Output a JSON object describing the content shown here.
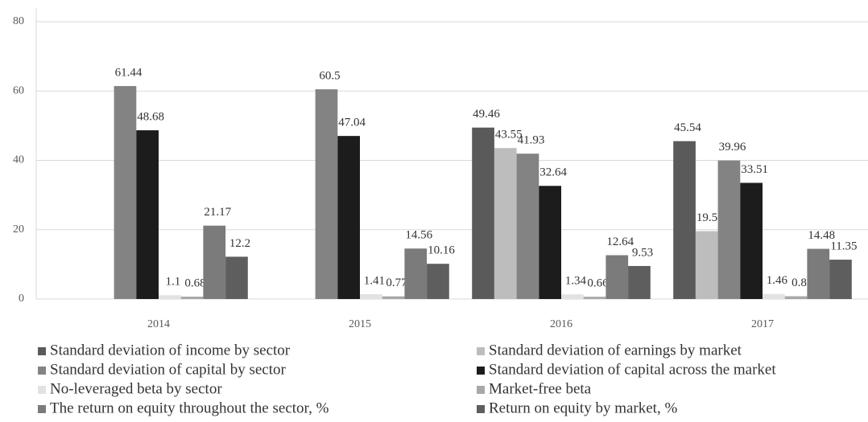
{
  "chart_data": {
    "type": "bar",
    "categories": [
      "2014",
      "2015",
      "2016",
      "2017"
    ],
    "series": [
      {
        "name": "Standard deviation of income by sector",
        "color": "#5a5a5a",
        "values": [
          null,
          null,
          49.46,
          45.54
        ]
      },
      {
        "name": "Standard deviation of earnings by market",
        "color": "#bdbdbd",
        "values": [
          null,
          null,
          43.55,
          19.58
        ]
      },
      {
        "name": "Standard deviation of capital by sector",
        "color": "#838383",
        "values": [
          61.44,
          60.5,
          41.93,
          39.96
        ]
      },
      {
        "name": "Standard deviation of capital across the market",
        "color": "#1c1c1c",
        "values": [
          48.68,
          47.04,
          32.64,
          33.51
        ]
      },
      {
        "name": "No-leveraged beta by sector",
        "color": "#e2e2e2",
        "values": [
          1.1,
          1.41,
          1.34,
          1.46
        ]
      },
      {
        "name": "Market-free beta",
        "color": "#a8a8a8",
        "values": [
          0.68,
          0.77,
          0.66,
          0.8
        ]
      },
      {
        "name": "The return on equity throughout the sector, %",
        "color": "#7b7b7b",
        "values": [
          21.17,
          14.56,
          12.64,
          14.48
        ]
      },
      {
        "name": "Return on equity by market, %",
        "color": "#5e5e5e",
        "values": [
          12.2,
          10.16,
          9.53,
          11.35
        ]
      }
    ],
    "ylim": [
      0,
      80
    ],
    "yticks": [
      0,
      20,
      40,
      60,
      80
    ],
    "grid": true,
    "legend": "bottom"
  }
}
